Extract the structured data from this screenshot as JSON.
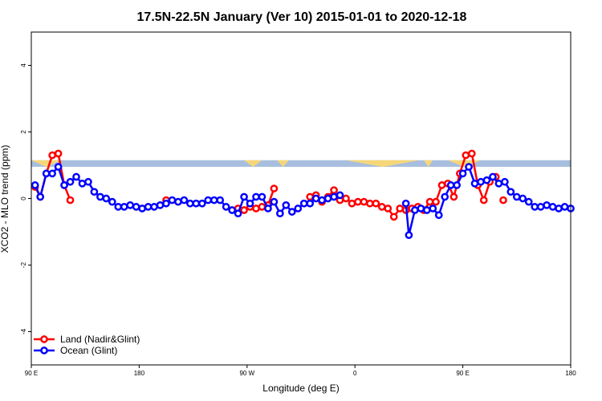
{
  "chart_data": {
    "type": "line",
    "title": "17.5N-22.5N January (Ver 10)   2015-01-01 to 2020-12-18",
    "xlabel": "Longitude (deg E)",
    "ylabel": "XCO2 - MLO trend (ppm)",
    "xlim": [
      90,
      450
    ],
    "ylim": [
      -5,
      5
    ],
    "x_ticks": [
      {
        "value": 90,
        "label": "90 E"
      },
      {
        "value": 162,
        "label": "180"
      },
      {
        "value": 234,
        "label": "90 W"
      },
      {
        "value": 306,
        "label": "0"
      },
      {
        "value": 378,
        "label": "90 E"
      },
      {
        "value": 450,
        "label": "180"
      }
    ],
    "y_ticks": [
      {
        "value": -4,
        "label": "-4"
      },
      {
        "value": -2,
        "label": "-2"
      },
      {
        "value": 0,
        "label": "0"
      },
      {
        "value": 2,
        "label": "2"
      },
      {
        "value": 4,
        "label": "4"
      }
    ],
    "grid": false,
    "legend_position": "bottom-left",
    "land_ocean_band": {
      "y_range": [
        0.95,
        1.15
      ],
      "ocean_color": "#a8bedf",
      "land_color": "#f5d77a",
      "land_segments": [
        [
          90,
          110
        ],
        [
          232,
          244
        ],
        [
          254,
          262
        ],
        [
          300,
          349
        ],
        [
          352,
          358
        ],
        [
          368,
          390
        ]
      ]
    },
    "series": [
      {
        "name": "Land (Nadir&Glint)",
        "color": "#ff0000",
        "segments": [
          {
            "x": [
              92.5,
              96,
              100,
              104,
              108,
              112,
              116
            ],
            "y": [
              0.35,
              0.05,
              0.75,
              1.3,
              1.35,
              0.4,
              -0.05
            ]
          },
          {
            "x": [
              180
            ],
            "y": [
              -0.05
            ]
          },
          {
            "x": [
              228,
              232,
              236,
              240,
              244,
              248,
              252
            ],
            "y": [
              -0.3,
              -0.35,
              -0.25,
              -0.3,
              -0.25,
              -0.2,
              0.3
            ]
          },
          {
            "x": [
              276,
              280,
              284,
              288,
              292,
              296,
              300,
              304,
              308,
              312,
              316,
              320,
              324,
              328,
              332,
              336,
              340,
              344,
              348,
              352,
              356,
              360,
              364,
              368,
              372,
              376,
              380,
              384,
              388,
              392,
              396,
              400
            ],
            "y": [
              0.05,
              0.1,
              -0.1,
              0.05,
              0.25,
              -0.05,
              0.0,
              -0.15,
              -0.1,
              -0.1,
              -0.15,
              -0.15,
              -0.25,
              -0.3,
              -0.55,
              -0.3,
              -0.35,
              -0.3,
              -0.25,
              -0.35,
              -0.1,
              -0.1,
              0.4,
              0.45,
              0.05,
              0.75,
              1.3,
              1.35,
              0.4,
              -0.05,
              0.5,
              0.65
            ]
          },
          {
            "x": [
              405
            ],
            "y": [
              -0.05
            ]
          }
        ]
      },
      {
        "name": "Ocean (Glint)",
        "color": "#0000ff",
        "segments": [
          {
            "x": [
              92.5,
              96,
              100,
              104,
              108,
              112,
              116,
              120,
              124,
              128,
              132,
              136,
              140,
              144,
              148,
              152,
              156,
              160,
              164,
              168,
              172,
              176,
              180,
              184,
              188,
              192,
              196,
              200,
              204,
              208,
              212,
              216,
              220,
              224,
              228,
              232,
              236,
              240,
              244,
              248,
              252,
              256,
              260,
              264,
              268,
              272,
              276,
              280,
              284,
              288,
              292,
              296,
              300,
              304
            ],
            "y": [
              0.4,
              0.05,
              0.75,
              0.75,
              0.95,
              0.4,
              0.5,
              0.65,
              0.45,
              0.5,
              0.2,
              0.05,
              0.0,
              -0.1,
              -0.25,
              -0.25,
              -0.2,
              -0.25,
              -0.3,
              -0.25,
              -0.25,
              -0.2,
              -0.15,
              -0.05,
              -0.1,
              -0.05,
              -0.15,
              -0.15,
              -0.15,
              -0.05,
              -0.05,
              -0.05,
              -0.25,
              -0.35,
              -0.45,
              0.05,
              -0.15,
              0.05,
              0.05,
              -0.3,
              -0.1,
              -0.45,
              -0.2,
              -0.4,
              -0.3,
              -0.15,
              -0.15,
              0.0,
              -0.05,
              0.0,
              0.05,
              0.1,
              null,
              null
            ]
          },
          {
            "x": [
              340,
              342,
              346,
              350,
              354,
              358,
              362,
              366,
              370,
              374,
              378,
              382,
              386,
              390,
              394,
              398,
              402,
              406,
              410,
              414,
              418,
              422,
              426,
              430,
              434,
              438,
              442,
              446,
              450
            ],
            "y": [
              -0.15,
              -1.1,
              -0.35,
              -0.3,
              -0.35,
              -0.3,
              -0.5,
              0.05,
              0.4,
              0.4,
              0.75,
              0.95,
              0.45,
              0.5,
              0.55,
              0.65,
              0.45,
              0.5,
              0.2,
              0.05,
              0.0,
              -0.1,
              -0.25,
              -0.25,
              -0.2,
              -0.25,
              -0.3,
              -0.25,
              -0.3
            ]
          }
        ]
      }
    ]
  }
}
